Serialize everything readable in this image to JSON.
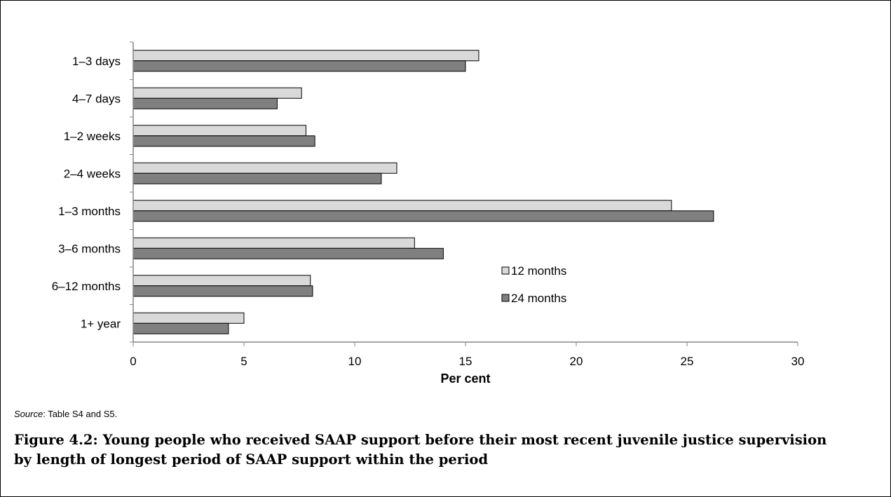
{
  "chart_data": {
    "type": "bar",
    "orientation": "horizontal",
    "categories": [
      "1–3 days",
      "4–7 days",
      "1–2 weeks",
      "2–4 weeks",
      "1–3 months",
      "3–6 months",
      "6–12 months",
      "1+ year"
    ],
    "series": [
      {
        "name": "12 months",
        "color": "#d9d9d9",
        "values": [
          15.6,
          7.6,
          7.8,
          11.9,
          24.3,
          12.7,
          8.0,
          5.0
        ]
      },
      {
        "name": "24 months",
        "color": "#808080",
        "values": [
          15.0,
          6.5,
          8.2,
          11.2,
          26.2,
          14.0,
          8.1,
          4.3
        ]
      }
    ],
    "xlabel": "Per cent",
    "ylabel": "",
    "xlim": [
      0,
      30
    ],
    "xticks": [
      "0",
      "5",
      "10",
      "15",
      "20",
      "25",
      "30"
    ],
    "grid": false,
    "legend_position": "right-center"
  },
  "source": {
    "label": "Source",
    "text": ": Table S4 and S5."
  },
  "caption": "Figure 4.2: Young people who received SAAP support before their most recent juvenile justice supervision by length of longest period of SAAP support within the period"
}
